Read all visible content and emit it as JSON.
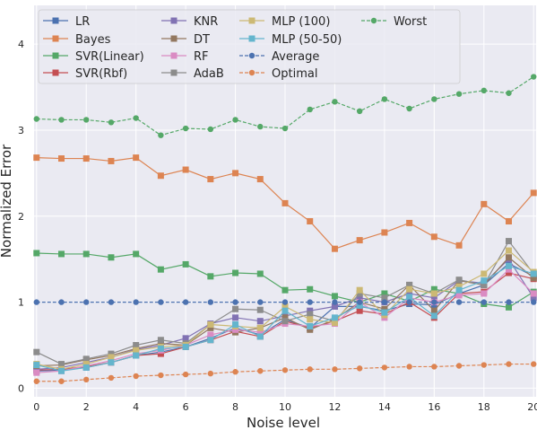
{
  "chart_data": {
    "type": "line",
    "xlabel": "Noise level",
    "ylabel": "Normalized Error",
    "xlim": [
      -0.1,
      20.1
    ],
    "ylim": [
      -0.1,
      4.45
    ],
    "xticks": [
      0,
      2,
      4,
      6,
      8,
      10,
      12,
      14,
      16,
      18,
      20
    ],
    "yticks": [
      0,
      1,
      2,
      3,
      4
    ],
    "grid": true,
    "legend": {
      "placement": "top",
      "columns": 4
    },
    "x": [
      0,
      1,
      2,
      3,
      4,
      5,
      6,
      7,
      8,
      9,
      10,
      11,
      12,
      13,
      14,
      15,
      16,
      17,
      18,
      19,
      20
    ],
    "series": [
      {
        "name": "LR",
        "color": "#4c72b0",
        "marker": "square",
        "dashed": false,
        "values": [
          0.2,
          0.21,
          0.24,
          0.3,
          0.38,
          0.42,
          0.48,
          0.58,
          0.7,
          0.62,
          0.8,
          0.7,
          0.95,
          0.95,
          0.9,
          0.98,
          0.97,
          1.1,
          1.2,
          1.45,
          1.3
        ]
      },
      {
        "name": "Bayes",
        "color": "#dd8452",
        "marker": "square",
        "dashed": false,
        "values": [
          2.68,
          2.67,
          2.67,
          2.64,
          2.68,
          2.47,
          2.54,
          2.43,
          2.5,
          2.43,
          2.15,
          1.94,
          1.62,
          1.72,
          1.81,
          1.92,
          1.76,
          1.66,
          2.14,
          1.94,
          2.27
        ]
      },
      {
        "name": "SVR(Linear)",
        "color": "#55a868",
        "marker": "square",
        "dashed": false,
        "values": [
          1.57,
          1.56,
          1.56,
          1.52,
          1.56,
          1.38,
          1.44,
          1.3,
          1.34,
          1.33,
          1.14,
          1.15,
          1.07,
          1.0,
          1.1,
          1.01,
          1.15,
          1.1,
          0.98,
          0.94,
          1.12
        ]
      },
      {
        "name": "SVR(Rbf)",
        "color": "#c44e52",
        "marker": "square",
        "dashed": false,
        "values": [
          0.21,
          0.22,
          0.25,
          0.3,
          0.38,
          0.4,
          0.48,
          0.56,
          0.66,
          0.6,
          0.78,
          0.7,
          0.78,
          0.9,
          0.86,
          1.0,
          0.82,
          1.1,
          1.12,
          1.34,
          1.27
        ]
      },
      {
        "name": "KNR",
        "color": "#8172b3",
        "marker": "square",
        "dashed": false,
        "values": [
          0.22,
          0.24,
          0.3,
          0.36,
          0.45,
          0.5,
          0.58,
          0.75,
          0.82,
          0.78,
          0.84,
          0.9,
          0.95,
          1.05,
          1.0,
          1.1,
          1.05,
          1.25,
          1.22,
          1.5,
          1.05
        ]
      },
      {
        "name": "DT",
        "color": "#937860",
        "marker": "square",
        "dashed": false,
        "values": [
          0.26,
          0.27,
          0.33,
          0.38,
          0.46,
          0.52,
          0.5,
          0.7,
          0.65,
          0.7,
          0.82,
          0.68,
          0.8,
          1.0,
          0.92,
          1.2,
          0.9,
          1.25,
          1.2,
          1.52,
          1.28
        ]
      },
      {
        "name": "RF",
        "color": "#da8bc3",
        "marker": "square",
        "dashed": false,
        "values": [
          0.18,
          0.2,
          0.26,
          0.32,
          0.4,
          0.44,
          0.5,
          0.62,
          0.68,
          0.65,
          0.75,
          0.72,
          0.75,
          1.0,
          0.82,
          1.05,
          1.0,
          1.08,
          1.1,
          1.38,
          1.1
        ]
      },
      {
        "name": "AdaB",
        "color": "#8c8c8c",
        "marker": "square",
        "dashed": false,
        "values": [
          0.42,
          0.28,
          0.34,
          0.4,
          0.5,
          0.56,
          0.52,
          0.74,
          0.92,
          0.91,
          0.78,
          0.86,
          0.78,
          1.1,
          1.05,
          1.2,
          1.1,
          1.26,
          1.2,
          1.71,
          1.33
        ]
      },
      {
        "name": "MLP (100)",
        "color": "#ccb974",
        "marker": "square",
        "dashed": false,
        "values": [
          0.28,
          0.22,
          0.28,
          0.36,
          0.44,
          0.48,
          0.5,
          0.74,
          0.72,
          0.7,
          0.95,
          0.8,
          0.76,
          1.14,
          0.85,
          1.15,
          1.1,
          1.18,
          1.33,
          1.6,
          1.35
        ]
      },
      {
        "name": "MLP (50-50)",
        "color": "#64b5cd",
        "marker": "square",
        "dashed": false,
        "values": [
          0.27,
          0.2,
          0.24,
          0.3,
          0.38,
          0.46,
          0.48,
          0.56,
          0.74,
          0.6,
          0.9,
          0.72,
          0.82,
          0.96,
          0.88,
          1.06,
          0.84,
          1.14,
          1.25,
          1.42,
          1.33
        ]
      },
      {
        "name": "Average",
        "color": "#4c72b0",
        "marker": "circle",
        "dashed": true,
        "values": [
          1.0,
          1.0,
          1.0,
          1.0,
          1.0,
          1.0,
          1.0,
          1.0,
          1.0,
          1.0,
          1.0,
          1.0,
          1.0,
          1.0,
          1.0,
          1.0,
          1.0,
          1.0,
          1.0,
          1.0,
          1.0
        ]
      },
      {
        "name": "Optimal",
        "color": "#dd8452",
        "marker": "circle",
        "dashed": true,
        "values": [
          0.08,
          0.08,
          0.1,
          0.12,
          0.14,
          0.15,
          0.16,
          0.17,
          0.19,
          0.2,
          0.21,
          0.22,
          0.22,
          0.23,
          0.24,
          0.25,
          0.25,
          0.26,
          0.27,
          0.28,
          0.28
        ]
      },
      {
        "name": "Worst",
        "color": "#55a868",
        "marker": "circle",
        "dashed": true,
        "values": [
          3.13,
          3.12,
          3.12,
          3.09,
          3.14,
          2.94,
          3.02,
          3.01,
          3.12,
          3.04,
          3.02,
          3.24,
          3.33,
          3.22,
          3.36,
          3.25,
          3.36,
          3.42,
          3.46,
          3.43,
          3.62
        ]
      }
    ]
  }
}
